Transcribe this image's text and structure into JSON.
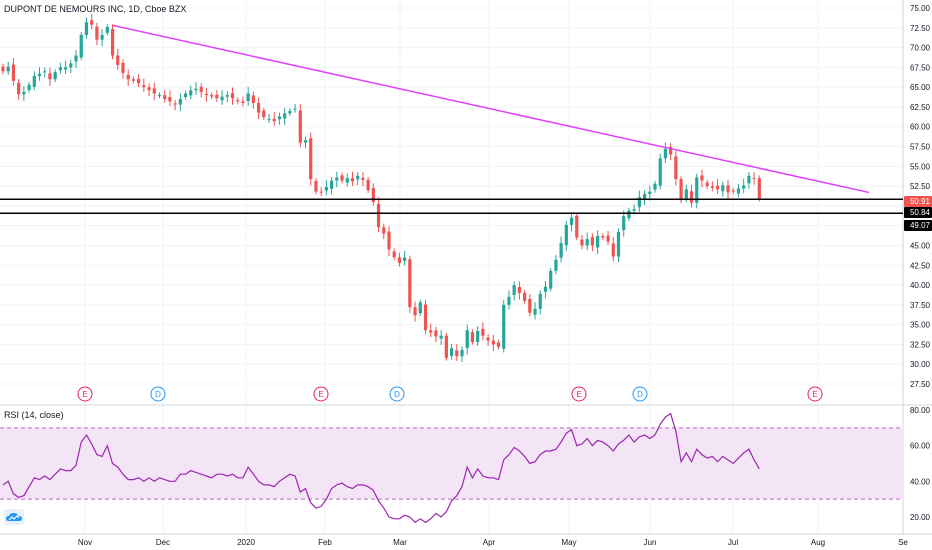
{
  "header": {
    "symbol_title": "DUPONT DE NEMOURS INC, 1D, Cboe BZX",
    "rsi_title": "RSI (14, close)"
  },
  "colors": {
    "up": "#26a69a",
    "down": "#ef5350",
    "trendline": "#e040fb",
    "rsi_line": "#9c27b0",
    "rsi_band": "#f3e5f5",
    "earnings": "#e91e63",
    "dividend": "#2196f3",
    "last_price_badge": "#ef5350"
  },
  "chart_data": {
    "type": "candlestick",
    "y_axis": {
      "range": [
        26.5,
        76
      ],
      "ticks": [
        "75.00",
        "72.50",
        "70.00",
        "67.50",
        "65.00",
        "62.50",
        "60.00",
        "57.50",
        "55.00",
        "52.50",
        "50.00",
        "47.50",
        "45.00",
        "42.50",
        "40.00",
        "37.50",
        "35.00",
        "32.50",
        "30.00",
        "27.50"
      ]
    },
    "x_axis": {
      "labels": [
        "Nov",
        "Dec",
        "2020",
        "Feb",
        "Mar",
        "Apr",
        "May",
        "Jun",
        "Jul",
        "Aug",
        "Se"
      ]
    },
    "price_badges": [
      {
        "label": "50.91",
        "kind": "last-price"
      },
      {
        "label": "50.84",
        "kind": "horizontal-line"
      },
      {
        "label": "49.07",
        "kind": "horizontal-line"
      }
    ],
    "horizontal_lines": [
      50.84,
      49.07
    ],
    "trendline": {
      "from": {
        "date": "Nov 8",
        "price": 72.8
      },
      "to": {
        "date": "Aug 18",
        "price": 51.7
      }
    },
    "events": [
      "E",
      "D",
      "E",
      "D",
      "E",
      "D",
      "E"
    ],
    "closes": [
      67.0,
      67.6,
      65.8,
      64.1,
      64.4,
      65.3,
      66.4,
      66.7,
      67.0,
      66.0,
      66.9,
      67.5,
      67.5,
      68.0,
      69.0,
      71.6,
      73.2,
      72.9,
      71.0,
      71.6,
      72.6,
      69.0,
      67.8,
      66.8,
      66.0,
      65.8,
      65.5,
      65.0,
      64.6,
      64.2,
      64.0,
      63.5,
      63.2,
      62.8,
      63.5,
      64.2,
      64.6,
      64.8,
      64.4,
      64.0,
      63.8,
      63.6,
      63.8,
      64.0,
      63.6,
      63.2,
      63.0,
      64.2,
      63.0,
      61.8,
      61.2,
      61.0,
      60.7,
      61.3,
      61.7,
      62.0,
      62.3,
      58.0,
      58.3,
      53.4,
      51.8,
      51.7,
      52.4,
      53.2,
      53.6,
      53.2,
      53.5,
      53.1,
      53.8,
      53.3,
      52.0,
      50.5,
      47.3,
      46.5,
      44.5,
      43.5,
      42.8,
      43.5,
      37.2,
      36.2,
      37.8,
      34.3,
      34.0,
      33.5,
      33.6,
      30.8,
      32.0,
      31.0,
      31.8,
      34.3,
      32.8,
      34.2,
      33.6,
      33.0,
      32.5,
      32.2,
      37.5,
      38.5,
      40.0,
      39.0,
      38.0,
      36.5,
      37.0,
      38.9,
      39.8,
      41.8,
      43.2,
      45.3,
      47.6,
      48.5,
      46.0,
      45.0,
      45.8,
      45.0,
      46.2,
      46.0,
      45.5,
      43.6,
      46.7,
      48.7,
      49.4,
      49.6,
      51.1,
      51.5,
      51.8,
      52.8,
      56.0,
      57.2,
      56.5,
      53.4,
      50.7,
      52.1,
      50.4,
      53.6,
      53.2,
      52.5,
      52.3,
      52.1,
      52.6,
      51.7,
      51.8,
      52.2,
      52.6,
      53.8,
      53.5,
      50.91
    ],
    "rsi": {
      "range": [
        15,
        82
      ],
      "ticks": [
        "80.00",
        "60.00",
        "40.00",
        "20.00"
      ],
      "band": [
        30,
        70
      ],
      "values": [
        38,
        40,
        33,
        31,
        32,
        37,
        42,
        41,
        43,
        41,
        44,
        47,
        46,
        46,
        49,
        62,
        66,
        61,
        55,
        54,
        60,
        50,
        48,
        44,
        41,
        41,
        42,
        40,
        42,
        40,
        42,
        41,
        40,
        40,
        44,
        44,
        46,
        45,
        44,
        43,
        42,
        44,
        44,
        43,
        44,
        42,
        42,
        48,
        44,
        40,
        38,
        38,
        37,
        40,
        42,
        44,
        43,
        34,
        36,
        28,
        25,
        26,
        30,
        36,
        38,
        39,
        37,
        36,
        38,
        38,
        37,
        35,
        29,
        25,
        20,
        19,
        19,
        21,
        20,
        17,
        19,
        17,
        19,
        22,
        20,
        23,
        29,
        32,
        37,
        48,
        42,
        47,
        43,
        42,
        42,
        41,
        52,
        55,
        59,
        57,
        54,
        50,
        51,
        55,
        57,
        57,
        58,
        62,
        67,
        69,
        60,
        61,
        64,
        60,
        63,
        62,
        60,
        57,
        61,
        63,
        66,
        62,
        65,
        66,
        64,
        66,
        72,
        76,
        78,
        68,
        51,
        56,
        51,
        58,
        55,
        53,
        54,
        51,
        54,
        52,
        50,
        53,
        56,
        58,
        52,
        47
      ]
    }
  }
}
